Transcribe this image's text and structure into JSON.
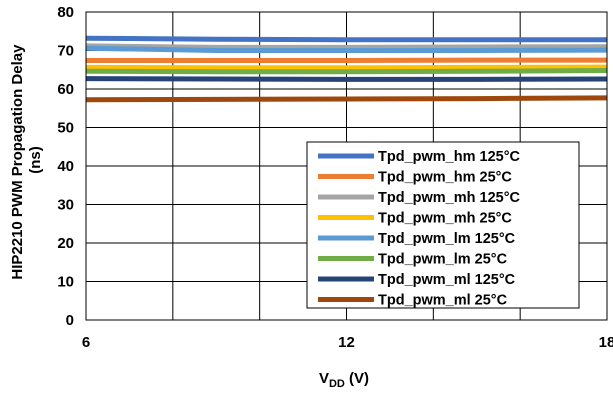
{
  "chart_data": {
    "type": "line",
    "xlabel_main": "V",
    "xlabel_sub": "DD",
    "xlabel_unit": " (V)",
    "ylabel_line1": "HIP2210 PWM Propagation Delay",
    "ylabel_line2": "(ns)",
    "xlim": [
      6,
      18
    ],
    "ylim": [
      0,
      80
    ],
    "xticks": [
      "6",
      "12",
      "18"
    ],
    "yticks": [
      "0",
      "10",
      "20",
      "30",
      "40",
      "50",
      "60",
      "70",
      "80"
    ],
    "x_gridlines": [
      6,
      8,
      10,
      12,
      14,
      16,
      18
    ],
    "y_gridlines": [
      0,
      10,
      20,
      30,
      40,
      50,
      60,
      70,
      80
    ],
    "legend_position": "bottom-right",
    "series": [
      {
        "name": "Tpd_pwm_hm 125°C",
        "color": "#4472C4",
        "x": [
          6,
          9,
          12,
          15,
          18
        ],
        "values": [
          73.2,
          72.9,
          72.8,
          72.8,
          72.8
        ]
      },
      {
        "name": "Tpd_pwm_hm 25°C",
        "color": "#ED7D31",
        "x": [
          6,
          9,
          12,
          15,
          18
        ],
        "values": [
          67.4,
          67.4,
          67.4,
          67.5,
          67.5
        ]
      },
      {
        "name": "Tpd_pwm_mh 125°C",
        "color": "#A5A5A5",
        "x": [
          6,
          9,
          12,
          15,
          18
        ],
        "values": [
          71.2,
          70.8,
          70.8,
          70.9,
          71.0
        ]
      },
      {
        "name": "Tpd_pwm_mh 25°C",
        "color": "#FFC000",
        "x": [
          6,
          9,
          12,
          15,
          18
        ],
        "values": [
          65.6,
          65.5,
          65.5,
          65.6,
          65.7
        ]
      },
      {
        "name": "Tpd_pwm_lm 125°C",
        "color": "#5B9BD5",
        "x": [
          6,
          9,
          12,
          15,
          18
        ],
        "values": [
          70.6,
          70.0,
          70.0,
          70.0,
          70.1
        ]
      },
      {
        "name": "Tpd_pwm_lm 25°C",
        "color": "#70AD47",
        "x": [
          6,
          9,
          12,
          15,
          18
        ],
        "values": [
          64.6,
          64.5,
          64.5,
          64.6,
          64.8
        ]
      },
      {
        "name": "Tpd_pwm_ml 125°C",
        "color": "#264478",
        "x": [
          6,
          9,
          12,
          15,
          18
        ],
        "values": [
          62.7,
          62.6,
          62.5,
          62.5,
          62.6
        ]
      },
      {
        "name": "Tpd_pwm_ml 25°C",
        "color": "#9E480E",
        "x": [
          6,
          9,
          12,
          15,
          18
        ],
        "values": [
          57.2,
          57.3,
          57.4,
          57.5,
          57.7
        ]
      }
    ]
  }
}
